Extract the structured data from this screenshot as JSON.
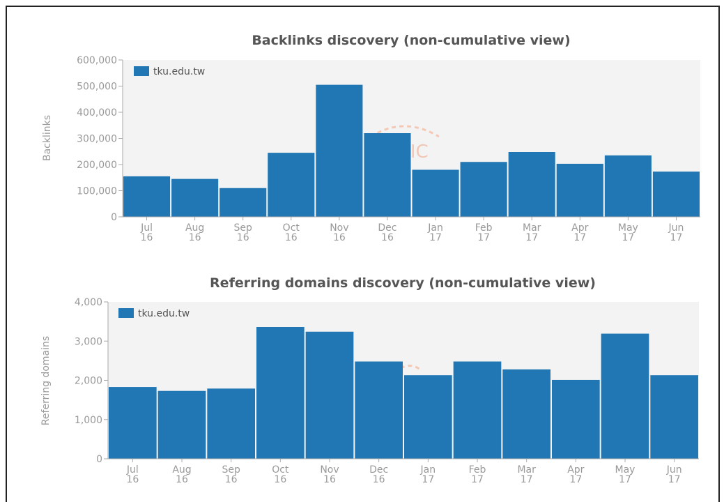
{
  "chart_data": [
    {
      "type": "bar",
      "title": "Backlinks discovery (non-cumulative view)",
      "ylabel": "Backlinks",
      "xlabel": "",
      "categories": [
        [
          "Jul",
          "16"
        ],
        [
          "Aug",
          "16"
        ],
        [
          "Sep",
          "16"
        ],
        [
          "Oct",
          "16"
        ],
        [
          "Nov",
          "16"
        ],
        [
          "Dec",
          "16"
        ],
        [
          "Jan",
          "17"
        ],
        [
          "Feb",
          "17"
        ],
        [
          "Mar",
          "17"
        ],
        [
          "Apr",
          "17"
        ],
        [
          "May",
          "17"
        ],
        [
          "Jun",
          "17"
        ]
      ],
      "series": [
        {
          "name": "tku.edu.tw",
          "values": [
            155000,
            145000,
            110000,
            245000,
            505000,
            320000,
            180000,
            210000,
            248000,
            203000,
            235000,
            173000
          ]
        }
      ],
      "ylim": [
        0,
        600000
      ],
      "yticks": [
        "0",
        "100,000",
        "200,000",
        "300,000",
        "400,000",
        "500,000",
        "600,000"
      ],
      "legend_position": "top-left",
      "color": "#2176b4",
      "watermark": "ESTIC"
    },
    {
      "type": "bar",
      "title": "Referring domains discovery (non-cumulative view)",
      "ylabel": "Referring domains",
      "xlabel": "",
      "categories": [
        [
          "Jul",
          "16"
        ],
        [
          "Aug",
          "16"
        ],
        [
          "Sep",
          "16"
        ],
        [
          "Oct",
          "16"
        ],
        [
          "Nov",
          "16"
        ],
        [
          "Dec",
          "16"
        ],
        [
          "Jan",
          "17"
        ],
        [
          "Feb",
          "17"
        ],
        [
          "Mar",
          "17"
        ],
        [
          "Apr",
          "17"
        ],
        [
          "May",
          "17"
        ],
        [
          "Jun",
          "17"
        ]
      ],
      "series": [
        {
          "name": "tku.edu.tw",
          "values": [
            1830,
            1730,
            1790,
            3360,
            3240,
            2480,
            2130,
            2480,
            2280,
            2010,
            3190,
            2130
          ]
        }
      ],
      "ylim": [
        0,
        4000
      ],
      "yticks": [
        "0",
        "1,000",
        "2,000",
        "3,000",
        "4,000"
      ],
      "legend_position": "top-left",
      "color": "#2176b4"
    }
  ]
}
